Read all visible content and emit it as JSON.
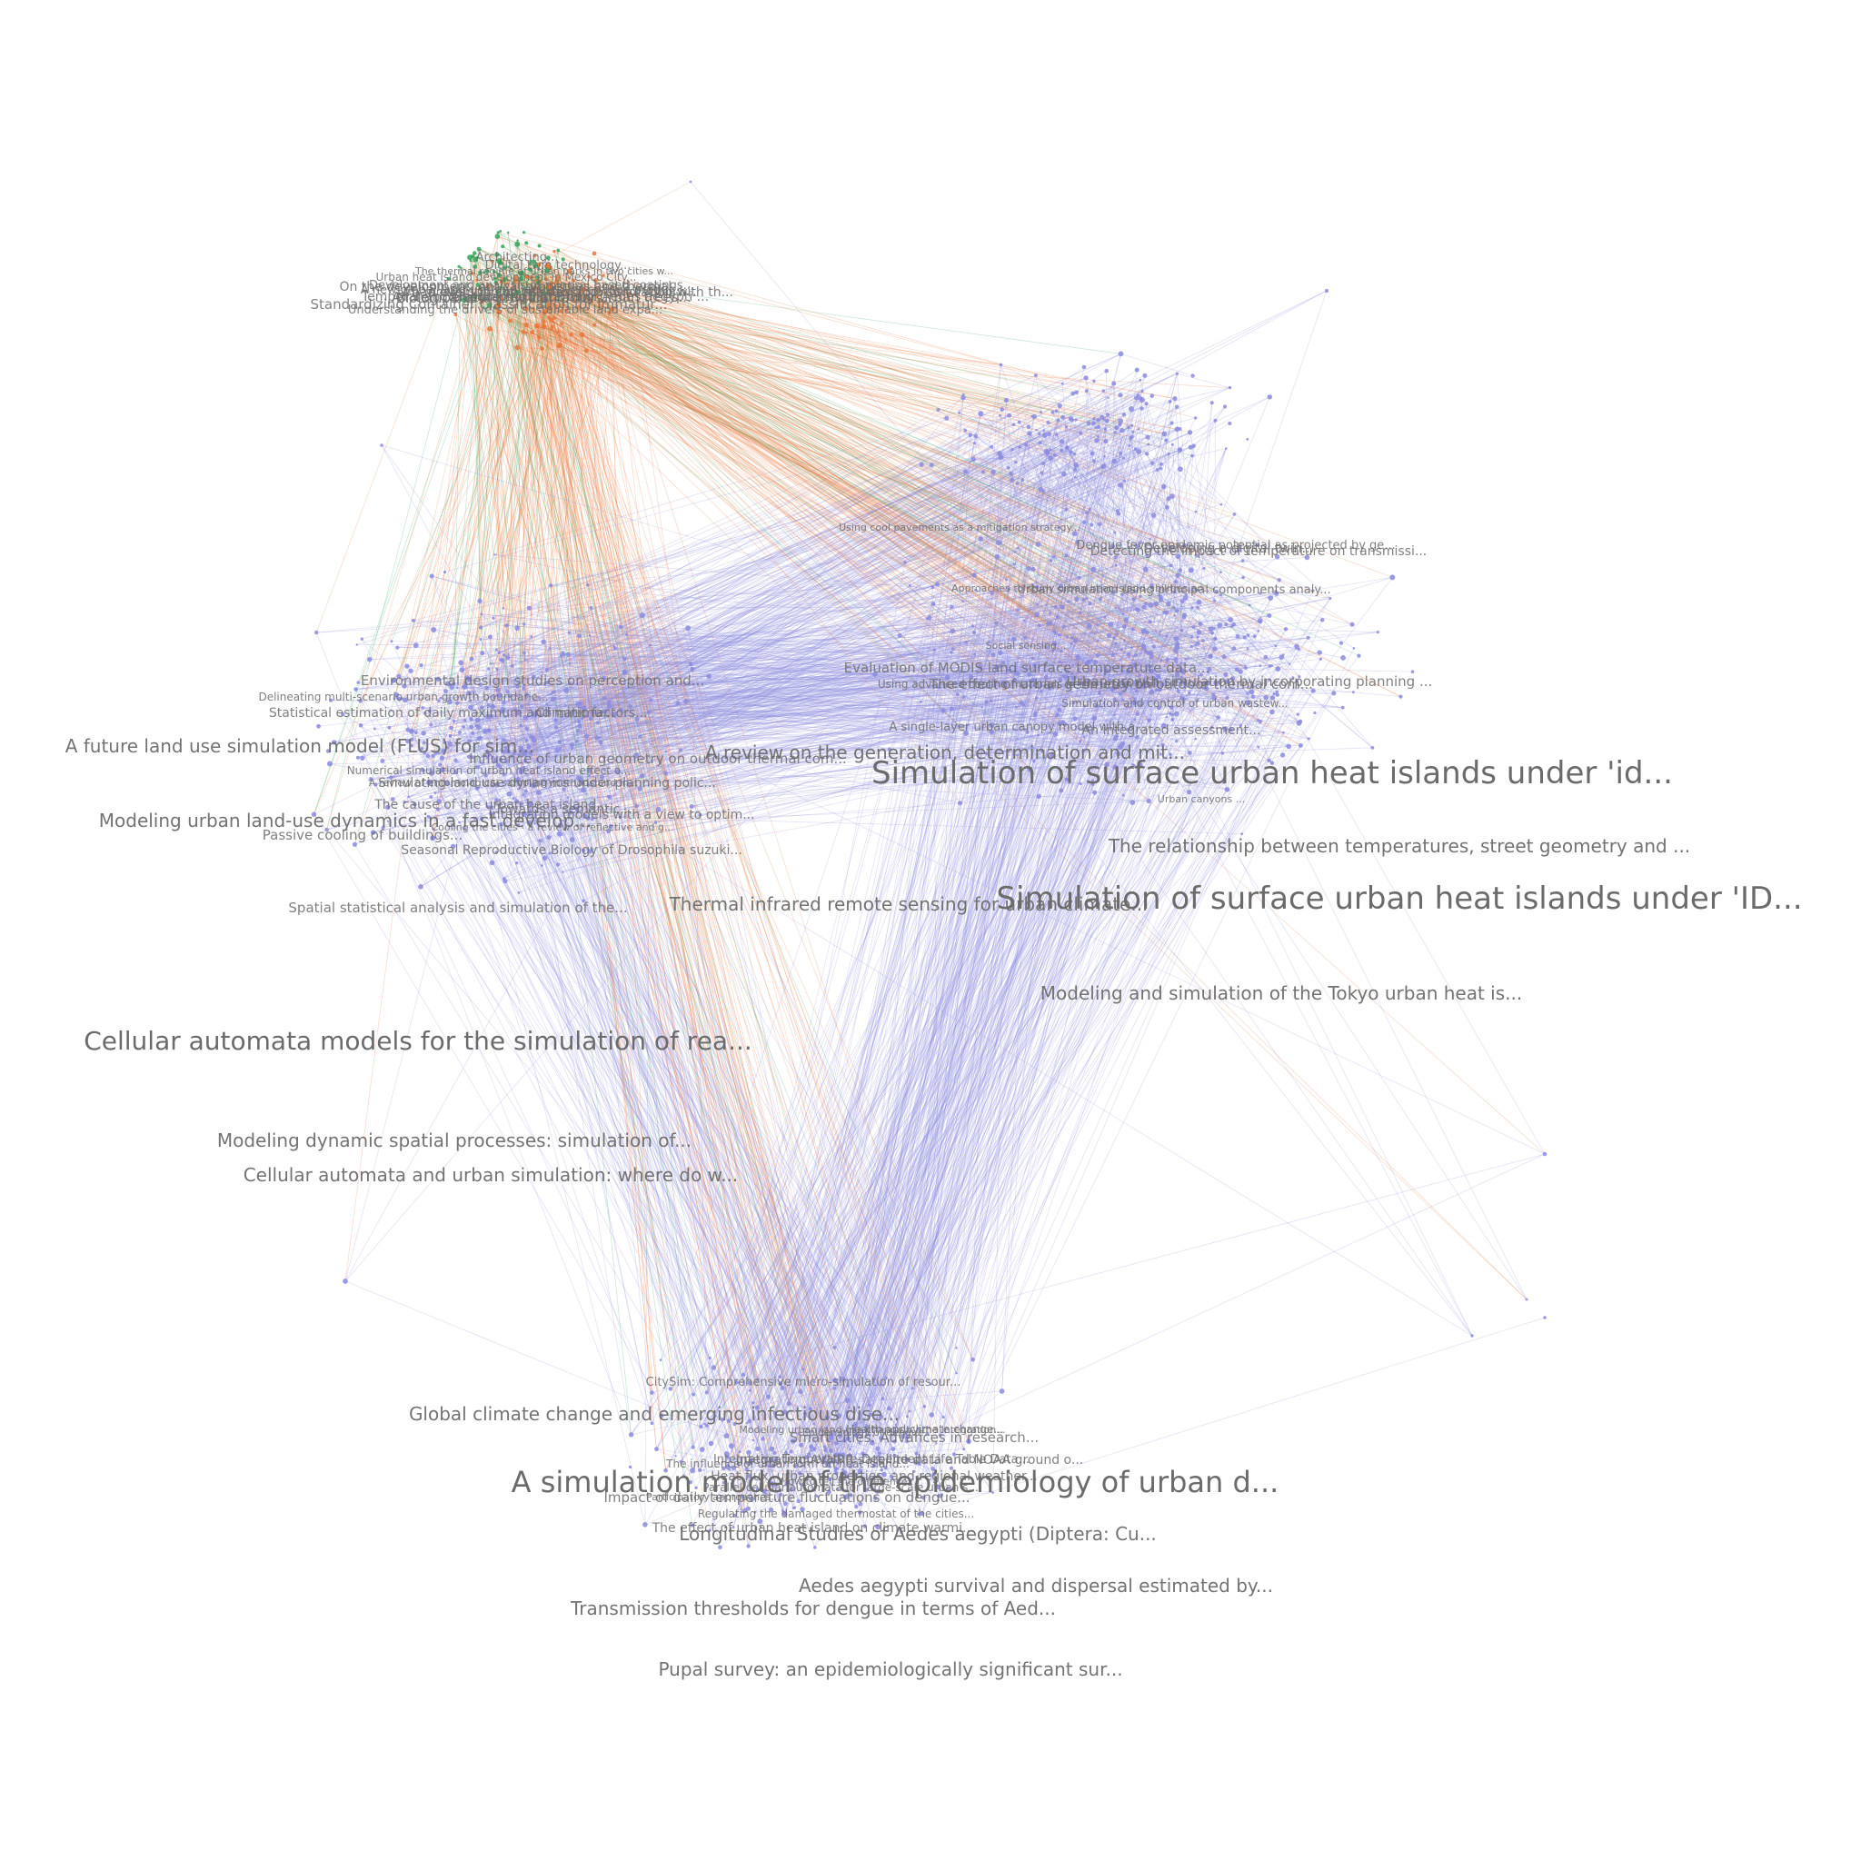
{
  "colors": {
    "background": "#ffffff",
    "cluster_main": "#8b8bdf",
    "cluster_smart_city_orange": "#e8773a",
    "cluster_smart_city_green": "#2fa55a",
    "label": "#6b6b6b"
  },
  "clusters": [
    {
      "id": "smart-city",
      "colors": [
        "#e8773a",
        "#2fa55a"
      ]
    },
    {
      "id": "urban-heat-island",
      "colors": [
        "#8b8bdf"
      ]
    },
    {
      "id": "land-use-simulation",
      "colors": [
        "#8b8bdf"
      ]
    },
    {
      "id": "dengue-epidemiology",
      "colors": [
        "#8b8bdf"
      ]
    }
  ],
  "labels": {
    "large": [
      "Simulation of surface urban heat islands under 'ID...",
      "Simulation of surface urban heat islands under 'id...",
      "A simulation model of the epidemiology of urban d...",
      "Cellular automata models for the simulation of rea..."
    ],
    "medium": [
      "Modeling dynamic spatial processes: simulation of...",
      "Cellular automata and urban simulation: where do w...",
      "The relationship between temperatures, street geometry and ...",
      "Modeling and simulation of the Tokyo urban heat is...",
      "A review on the generation, determination and mit...",
      "Global climate change and emerging infectious dise...",
      "Pupal survey: an epidemiologically significant sur...",
      "Thermal infrared remote sensing for urban climate...",
      "A future land use simulation model (FLUS) for sim...",
      "Modeling urban land-use dynamics in a fast develop...",
      "Longitudinal Studies of Aedes aegypti (Diptera: Cu...",
      "Aedes aegypti survival and dispersal estimated by...",
      "Transmission thresholds for dengue in terms of Aed..."
    ],
    "small": [
      "Dengue fever epidemic potential as projected by ge...",
      "A review of entomological sampling methods and in...",
      "Modeling urban land-use change by the integration...",
      "On the development, optical properties and thermal...",
      "Using advanced cooling materials in the urban built...",
      "Passive cooling of buildings...",
      "The effect of urban heat island on climate warmi...",
      "The thermal regime of urban parks in two cities w...",
      "Approaches to study urban heat island-abilities an...",
      "Spatial statistical analysis and simulation of the...",
      "Impact of daily temperature fluctuations on dengue...",
      "A new global land-use and land-cover change produc...",
      "Evaluation of MODIS land surface temperature data...",
      "Statistical estimation of daily maximum and minimu...",
      "Integrating AVHRR satellite data and NOAA ground o...",
      "Urban evolution on the desktop: simulation with th...",
      "Urban simulation using principal components analy...",
      "Simulating land use dynamics under planning polic...",
      "Parallel cellular automata for large-scale urban s...",
      "Understanding the drivers of sustainable land expa...",
      "Urban growth simulation by incorporating planning ...",
      "Delineating multi-scenario urban growth boundarie...",
      "Smart cities: Advances in research...",
      "Digital twin technology...",
      "Developing a digital twin...",
      "Towards a semantic...",
      "How to tell the difference...",
      "Dimensions of digital twin...",
      "Simulation and control of urban wastew...",
      "Integration models with a view to optim...",
      "Participatory approaches...",
      "Architecting...",
      "Social sensing...",
      "Environmental design studies on perception and...",
      "CitySim: Comprehensive micro-simulation of resour...",
      "Analysis of retro-reflective surfaces for urban h...",
      "Using cool pavements as a mitigation strategy...",
      "Cooling the cities - a review of reflective and g...",
      "Regulating the damaged thermostat of the cities...",
      "Development and analysis of mineral based coatings...",
      "The effect of urban geometry on outdoor thermal com...",
      "Influence of urban geometry on outdoor thermal com...",
      "The influence of urban form on heat island...",
      "Air temperature regulation by urban trees...",
      "Urban canyons ...",
      "Numerical simulation of urban heat island effect o...",
      "Heat flux, urban properties, and regional weather...",
      "Urban heat island development in Mexico City...",
      "A single-layer urban canopy model with a...",
      "The cause of the urban heat island...",
      "Health and climate change...",
      "Biological and physical factors...",
      "An integrated assessment...",
      "Climatic factors...",
      "Epidemiology of dengue...",
      "Temporal and Geographic Patterns of Aedes aegypti ...",
      "Detecting the impact of temperature on transmissi...",
      "Seasonal Reproductive Biology of Drosophila suzuki...",
      "Integrating Temperature-Dependent Life Table Data...",
      "Standardizing Container Classification for Immatur..."
    ]
  },
  "nodes": {
    "main_count": 1400,
    "smart_city_count": 180,
    "label_count_large": 4,
    "label_count_medium": 13
  }
}
